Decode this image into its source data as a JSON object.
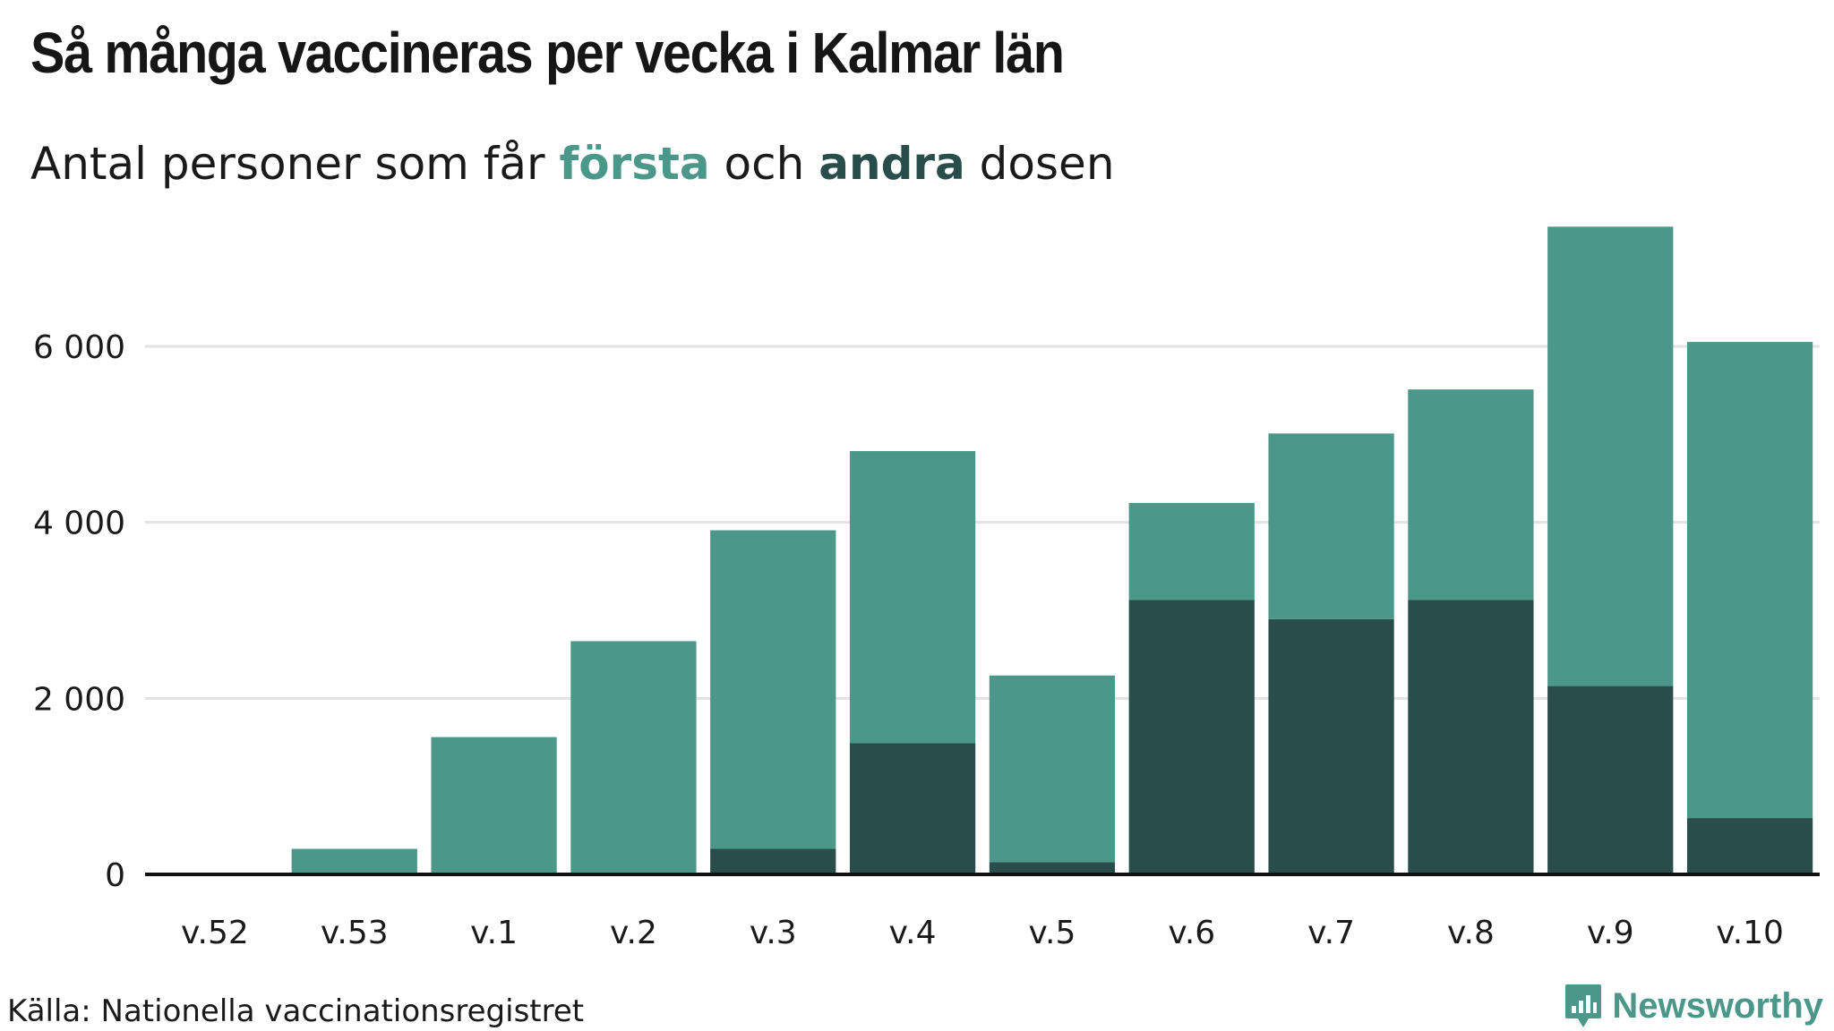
{
  "header": {
    "title": "Så många vaccineras per vecka i Kalmar län",
    "subtitle_prefix": "Antal personer som får",
    "subtitle_first": "första",
    "subtitle_mid": "och",
    "subtitle_second": "andra",
    "subtitle_suffix": "dosen"
  },
  "footer": {
    "source": "Källa: Nationella vaccinationsregistret",
    "brand": "Newsworthy"
  },
  "colors": {
    "first_dose": "#4b988b",
    "second_dose": "#284d4a",
    "grid": "#e3e3e3",
    "axis": "#111111"
  },
  "icons": {
    "brand_logo": "newsworthy-logo-icon"
  },
  "chart_data": {
    "type": "bar",
    "stacked": true,
    "categories": [
      "v.52",
      "v.53",
      "v.1",
      "v.2",
      "v.3",
      "v.4",
      "v.5",
      "v.6",
      "v.7",
      "v.8",
      "v.9",
      "v.10"
    ],
    "series": [
      {
        "name": "andra",
        "values": [
          0,
          0,
          0,
          0,
          290,
          1490,
          140,
          3120,
          2900,
          3120,
          2140,
          640
        ]
      },
      {
        "name": "första",
        "values": [
          0,
          290,
          1560,
          2650,
          3620,
          3320,
          2120,
          1100,
          2110,
          2390,
          5220,
          5410
        ]
      }
    ],
    "y_ticks": [
      0,
      2000,
      4000,
      6000
    ],
    "y_tick_labels": [
      "0",
      "2 000",
      "4 000",
      "6 000"
    ],
    "ylim": [
      0,
      7800
    ],
    "grid": true,
    "xlabel": "",
    "ylabel": ""
  }
}
